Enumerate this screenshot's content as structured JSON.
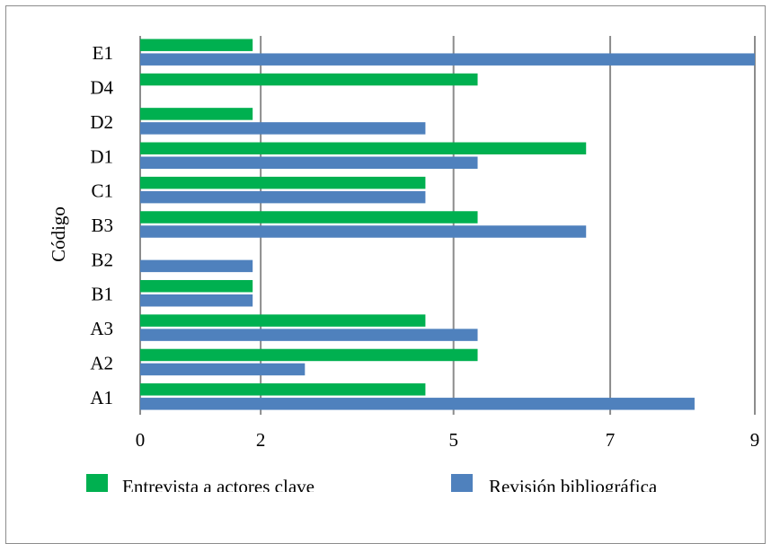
{
  "chart_data": {
    "type": "bar",
    "orientation": "horizontal",
    "categories": [
      "A1",
      "A2",
      "A3",
      "B1",
      "B2",
      "B3",
      "C1",
      "D1",
      "D2",
      "D4",
      "E1"
    ],
    "series": [
      {
        "name": "Entrevista a actores clave",
        "color": "#00b050",
        "values": [
          3.55,
          4.2,
          3.55,
          1.4,
          0,
          4.2,
          3.55,
          5.55,
          1.4,
          4.2,
          1.4
        ]
      },
      {
        "name": "Revisión bibliográfica",
        "color": "#4f81bd",
        "values": [
          6.9,
          2.05,
          4.2,
          1.4,
          1.4,
          5.55,
          3.55,
          4.2,
          3.55,
          0,
          7.65
        ]
      }
    ],
    "xlim": [
      0,
      7.65
    ],
    "xticks": [
      {
        "value": 0,
        "label": "0"
      },
      {
        "value": 1.5,
        "label": "2"
      },
      {
        "value": 3.9,
        "label": "5"
      },
      {
        "value": 5.85,
        "label": "7"
      },
      {
        "value": 7.65,
        "label": "9"
      }
    ],
    "xlabel": "",
    "ylabel": "Código",
    "grid": true,
    "legend": "bottom"
  }
}
